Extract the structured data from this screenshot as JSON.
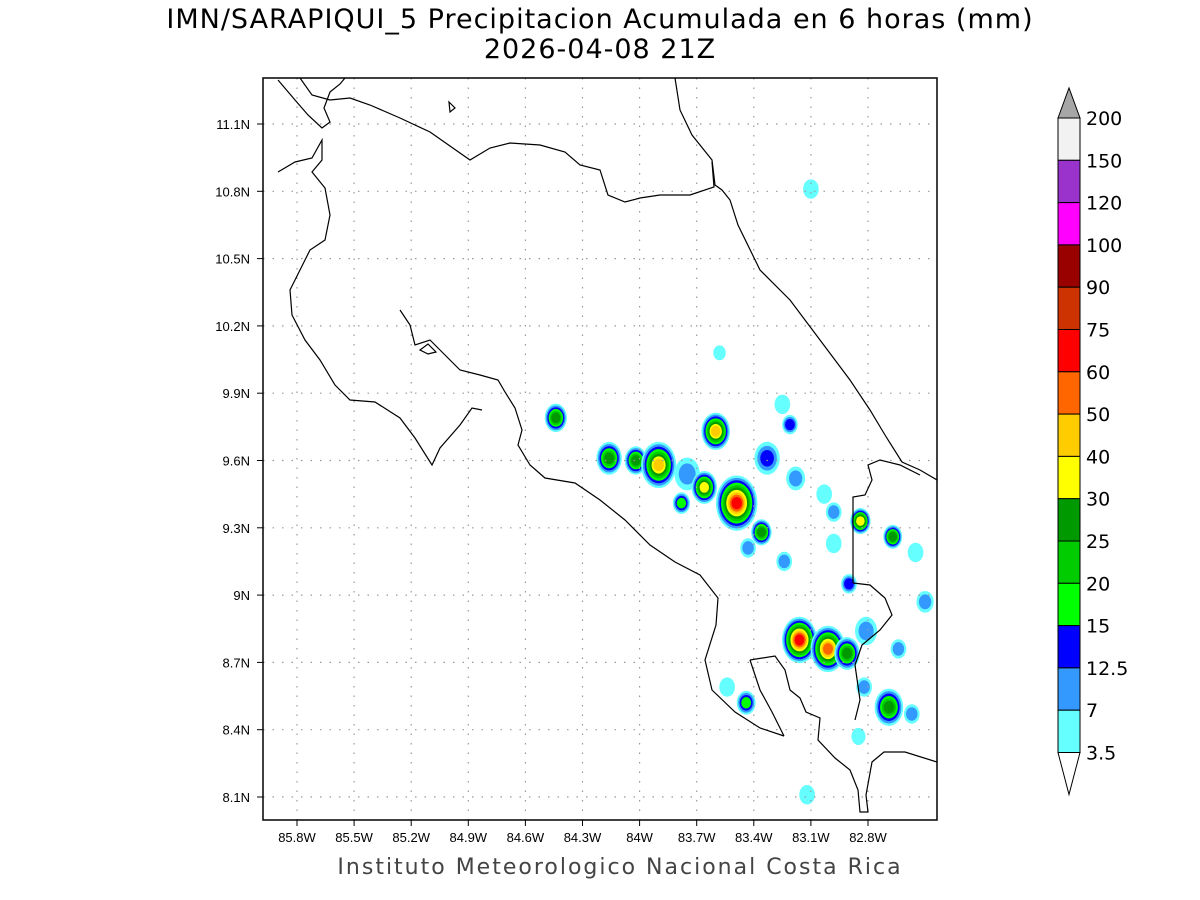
{
  "title": "IMN/SARAPIQUI_5 Precipitacion Acumulada en 6 horas (mm)",
  "subtitle": "2026-04-08 21Z",
  "footer": "Instituto Meteorologico Nacional Costa Rica",
  "map": {
    "lon_range_W": [
      85.98,
      82.44
    ],
    "lat_range_N": [
      8.0,
      11.3
    ],
    "lon_ticks": [
      "85.8W",
      "85.5W",
      "85.2W",
      "84.9W",
      "84.6W",
      "84.3W",
      "84W",
      "83.7W",
      "83.4W",
      "83.1W",
      "82.8W"
    ],
    "lon_tick_values": [
      85.8,
      85.5,
      85.2,
      84.9,
      84.6,
      84.3,
      84.0,
      83.7,
      83.4,
      83.1,
      82.8
    ],
    "lat_ticks": [
      "11.1N",
      "10.8N",
      "10.5N",
      "10.2N",
      "9.9N",
      "9.6N",
      "9.3N",
      "9N",
      "8.7N",
      "8.4N",
      "8.1N"
    ],
    "lat_tick_values": [
      11.1,
      10.8,
      10.5,
      10.2,
      9.9,
      9.6,
      9.3,
      9.0,
      8.7,
      8.4,
      8.1
    ],
    "grid": "dotted"
  },
  "colorbar": {
    "labels": [
      "200",
      "150",
      "120",
      "100",
      "90",
      "75",
      "60",
      "50",
      "40",
      "30",
      "25",
      "20",
      "15",
      "12.5",
      "7",
      "3.5"
    ],
    "levels": [
      3.5,
      7,
      12.5,
      15,
      20,
      25,
      30,
      40,
      50,
      60,
      75,
      90,
      100,
      120,
      150,
      200
    ],
    "colors": [
      "#66ffff",
      "#3399ff",
      "#0000ff",
      "#00ff00",
      "#00cc00",
      "#009900",
      "#ffff00",
      "#ffcc00",
      "#ff6600",
      "#ff0000",
      "#cc3300",
      "#990000",
      "#ff00ff",
      "#9933cc",
      "#f2f2f2"
    ],
    "over_color": "#a6a6a6",
    "under_color": "#ffffff"
  },
  "precip_cells": [
    {
      "lon": 84.44,
      "lat": 9.79,
      "peak": 25,
      "size": 0.05
    },
    {
      "lon": 84.16,
      "lat": 9.61,
      "peak": 25,
      "size": 0.06
    },
    {
      "lon": 84.02,
      "lat": 9.6,
      "peak": 25,
      "size": 0.05
    },
    {
      "lon": 83.9,
      "lat": 9.58,
      "peak": 40,
      "size": 0.09
    },
    {
      "lon": 83.75,
      "lat": 9.54,
      "peak": 7,
      "size": 0.06
    },
    {
      "lon": 83.66,
      "lat": 9.48,
      "peak": 30,
      "size": 0.06
    },
    {
      "lon": 83.78,
      "lat": 9.41,
      "peak": 15,
      "size": 0.035
    },
    {
      "lon": 83.6,
      "lat": 9.73,
      "peak": 40,
      "size": 0.07
    },
    {
      "lon": 83.49,
      "lat": 9.41,
      "peak": 60,
      "size": 0.11
    },
    {
      "lon": 83.36,
      "lat": 9.28,
      "peak": 25,
      "size": 0.045
    },
    {
      "lon": 83.33,
      "lat": 9.61,
      "peak": 12.5,
      "size": 0.06
    },
    {
      "lon": 83.21,
      "lat": 9.76,
      "peak": 12.5,
      "size": 0.03
    },
    {
      "lon": 83.25,
      "lat": 9.85,
      "peak": 3.5,
      "size": 0.03
    },
    {
      "lon": 83.1,
      "lat": 10.81,
      "peak": 3.5,
      "size": 0.03
    },
    {
      "lon": 83.58,
      "lat": 10.08,
      "peak": 3.5,
      "size": 0.02
    },
    {
      "lon": 83.43,
      "lat": 9.21,
      "peak": 7,
      "size": 0.03
    },
    {
      "lon": 83.18,
      "lat": 9.52,
      "peak": 7,
      "size": 0.04
    },
    {
      "lon": 83.03,
      "lat": 9.45,
      "peak": 3.5,
      "size": 0.03
    },
    {
      "lon": 82.98,
      "lat": 9.37,
      "peak": 7,
      "size": 0.03
    },
    {
      "lon": 82.84,
      "lat": 9.33,
      "peak": 30,
      "size": 0.045
    },
    {
      "lon": 82.67,
      "lat": 9.26,
      "peak": 25,
      "size": 0.04
    },
    {
      "lon": 82.9,
      "lat": 9.05,
      "peak": 12.5,
      "size": 0.03
    },
    {
      "lon": 83.16,
      "lat": 8.8,
      "peak": 60,
      "size": 0.09
    },
    {
      "lon": 83.01,
      "lat": 8.76,
      "peak": 50,
      "size": 0.09
    },
    {
      "lon": 82.91,
      "lat": 8.74,
      "peak": 25,
      "size": 0.06
    },
    {
      "lon": 82.81,
      "lat": 8.84,
      "peak": 7,
      "size": 0.05
    },
    {
      "lon": 82.69,
      "lat": 8.5,
      "peak": 25,
      "size": 0.07
    },
    {
      "lon": 82.57,
      "lat": 8.47,
      "peak": 7,
      "size": 0.03
    },
    {
      "lon": 83.44,
      "lat": 8.52,
      "peak": 15,
      "size": 0.04
    },
    {
      "lon": 82.82,
      "lat": 8.59,
      "peak": 7,
      "size": 0.03
    },
    {
      "lon": 83.24,
      "lat": 9.15,
      "peak": 7,
      "size": 0.03
    },
    {
      "lon": 82.98,
      "lat": 9.23,
      "peak": 3.5,
      "size": 0.03
    },
    {
      "lon": 82.64,
      "lat": 8.76,
      "peak": 7,
      "size": 0.03
    },
    {
      "lon": 82.5,
      "lat": 8.97,
      "peak": 7,
      "size": 0.035
    },
    {
      "lon": 82.55,
      "lat": 9.19,
      "peak": 3.5,
      "size": 0.03
    },
    {
      "lon": 83.12,
      "lat": 8.11,
      "peak": 3.5,
      "size": 0.03
    },
    {
      "lon": 82.85,
      "lat": 8.37,
      "peak": 3.5,
      "size": 0.025
    },
    {
      "lon": 83.54,
      "lat": 8.59,
      "peak": 3.5,
      "size": 0.03
    }
  ]
}
